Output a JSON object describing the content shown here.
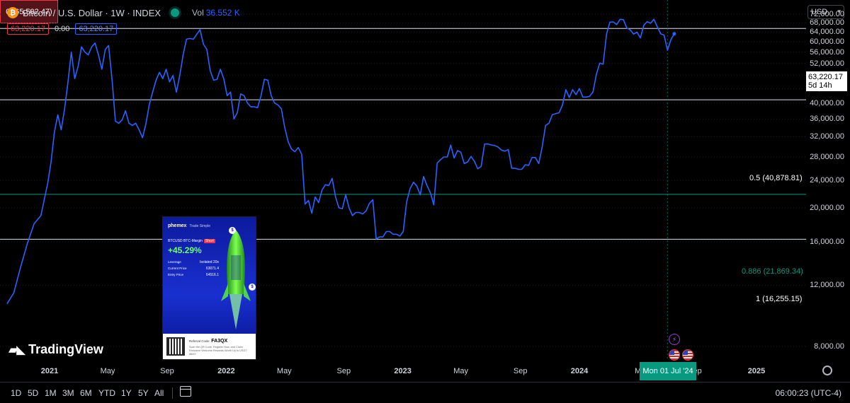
{
  "header": {
    "symbol_icon": "bitcoin-icon",
    "title": "Bitcoin / U.S. Dollar · 1W · INDEX",
    "vol_label": "Vol",
    "vol_value": "36.552 K",
    "price_left": "63,220.17",
    "price_change": "0.00",
    "price_right": "63,220.17"
  },
  "currency": {
    "label": "USD"
  },
  "current_price": {
    "value": "63,220.17",
    "countdown": "5d 14h"
  },
  "fib_labels": {
    "top": "0 (65,502.47)",
    "half": "0.5 (40,878.81)",
    "f886": "0.886 (21,869.34)",
    "one": "1 (16,255.15)"
  },
  "crosshair": {
    "date_label": "Mon 01 Jul '24"
  },
  "time_buttons": [
    "1D",
    "5D",
    "1M",
    "3M",
    "6M",
    "YTD",
    "1Y",
    "5Y",
    "All"
  ],
  "clock": "06:00:23 (UTC-4)",
  "logo": {
    "text": "TradingView"
  },
  "ad": {
    "brand": "phemex",
    "brand_sub": "Trade Simple",
    "pair": "BTCUSD BTC-Margin",
    "side": "Short",
    "pct": "+45.29%",
    "leverage_label": "Leverage",
    "leverage_value": "Isolated 20x",
    "current_label": "Current Price",
    "current_value": "63071.4",
    "entry_label": "Entry Price",
    "entry_value": "64516.1",
    "ref_label": "Referral Code:",
    "ref_code": "FA3QX",
    "fine": "Scan the QR Code, Register Now, and Claim Exclusive Welcome Rewards Worth Up to USDT 8800!"
  },
  "colors": {
    "background": "#000000",
    "line": "#2962ff",
    "fib_886": "#089981",
    "accent_red": "#f23645"
  },
  "chart_data": {
    "type": "line",
    "y_scale": "log",
    "ylim": [
      6800,
      79000
    ],
    "y_ticks": [
      {
        "value": 8000,
        "label": "8,000.00"
      },
      {
        "value": 12000,
        "label": "12,000.00"
      },
      {
        "value": 16000,
        "label": "16,000.00"
      },
      {
        "value": 20000,
        "label": "20,000.00"
      },
      {
        "value": 24000,
        "label": "24,000.00"
      },
      {
        "value": 28000,
        "label": "28,000.00"
      },
      {
        "value": 32000,
        "label": "32,000.00"
      },
      {
        "value": 36000,
        "label": "36,000.00"
      },
      {
        "value": 40000,
        "label": "40,000.00"
      },
      {
        "value": 44000,
        "label": "44,000.00"
      },
      {
        "value": 48000,
        "label": "48,000.00"
      },
      {
        "value": 52000,
        "label": "52,000.00"
      },
      {
        "value": 56000,
        "label": "56,000.00"
      },
      {
        "value": 60000,
        "label": "60,000.00"
      },
      {
        "value": 64000,
        "label": "64,000.00"
      },
      {
        "value": 68000,
        "label": "68,000.00"
      },
      {
        "value": 72000,
        "label": "72,000.00"
      }
    ],
    "x_ticks": [
      {
        "date": "2021-01-01",
        "label": "2021",
        "bold": true
      },
      {
        "date": "2021-05-01",
        "label": "May",
        "bold": false
      },
      {
        "date": "2021-09-01",
        "label": "Sep",
        "bold": false
      },
      {
        "date": "2022-01-01",
        "label": "2022",
        "bold": true
      },
      {
        "date": "2022-05-01",
        "label": "May",
        "bold": false
      },
      {
        "date": "2022-09-01",
        "label": "Sep",
        "bold": false
      },
      {
        "date": "2023-01-01",
        "label": "2023",
        "bold": true
      },
      {
        "date": "2023-05-01",
        "label": "May",
        "bold": false
      },
      {
        "date": "2023-09-01",
        "label": "Sep",
        "bold": false
      },
      {
        "date": "2024-01-01",
        "label": "2024",
        "bold": true
      },
      {
        "date": "2024-05-01",
        "label": "M",
        "bold": false
      },
      {
        "date": "2024-09-01",
        "label": "ep",
        "bold": false
      },
      {
        "date": "2025-01-01",
        "label": "2025",
        "bold": true
      }
    ],
    "fib_levels": [
      {
        "ratio": "0",
        "value": 65502.47
      },
      {
        "ratio": "0.5",
        "value": 40878.81
      },
      {
        "ratio": "0.886",
        "value": 21869.34
      },
      {
        "ratio": "1",
        "value": 16255.15
      }
    ],
    "crosshair_date": "2024-07-01",
    "series": [
      {
        "points": [
          [
            "2020-10-05",
            10600
          ],
          [
            "2020-10-19",
            11400
          ],
          [
            "2020-11-02",
            13500
          ],
          [
            "2020-11-16",
            15800
          ],
          [
            "2020-11-30",
            18000
          ],
          [
            "2020-12-14",
            19000
          ],
          [
            "2020-12-28",
            23500
          ],
          [
            "2021-01-04",
            27000
          ],
          [
            "2021-01-11",
            33000
          ],
          [
            "2021-01-18",
            37000
          ],
          [
            "2021-01-25",
            33500
          ],
          [
            "2021-02-01",
            38500
          ],
          [
            "2021-02-08",
            46000
          ],
          [
            "2021-02-15",
            56000
          ],
          [
            "2021-02-22",
            47000
          ],
          [
            "2021-03-01",
            51000
          ],
          [
            "2021-03-08",
            58000
          ],
          [
            "2021-03-15",
            56000
          ],
          [
            "2021-03-22",
            55000
          ],
          [
            "2021-03-29",
            58000
          ],
          [
            "2021-04-05",
            59500
          ],
          [
            "2021-04-12",
            55000
          ],
          [
            "2021-04-19",
            50000
          ],
          [
            "2021-04-26",
            57000
          ],
          [
            "2021-05-03",
            58500
          ],
          [
            "2021-05-10",
            47000
          ],
          [
            "2021-05-17",
            35500
          ],
          [
            "2021-05-24",
            35000
          ],
          [
            "2021-05-31",
            35800
          ],
          [
            "2021-06-07",
            38000
          ],
          [
            "2021-06-14",
            35000
          ],
          [
            "2021-06-21",
            34500
          ],
          [
            "2021-06-28",
            35000
          ],
          [
            "2021-07-05",
            33500
          ],
          [
            "2021-07-12",
            31800
          ],
          [
            "2021-07-19",
            34800
          ],
          [
            "2021-07-26",
            39500
          ],
          [
            "2021-08-02",
            43000
          ],
          [
            "2021-08-09",
            46500
          ],
          [
            "2021-08-16",
            49000
          ],
          [
            "2021-08-23",
            47000
          ],
          [
            "2021-08-30",
            50000
          ],
          [
            "2021-09-06",
            46000
          ],
          [
            "2021-09-13",
            48000
          ],
          [
            "2021-09-20",
            43000
          ],
          [
            "2021-09-27",
            48000
          ],
          [
            "2021-10-04",
            55000
          ],
          [
            "2021-10-11",
            61000
          ],
          [
            "2021-10-18",
            61300
          ],
          [
            "2021-10-25",
            61000
          ],
          [
            "2021-11-01",
            63000
          ],
          [
            "2021-11-08",
            65000
          ],
          [
            "2021-11-15",
            59000
          ],
          [
            "2021-11-22",
            57000
          ],
          [
            "2021-11-29",
            49500
          ],
          [
            "2021-12-06",
            46500
          ],
          [
            "2021-12-13",
            46800
          ],
          [
            "2021-12-20",
            50000
          ],
          [
            "2021-12-27",
            47000
          ],
          [
            "2022-01-03",
            42000
          ],
          [
            "2022-01-10",
            43000
          ],
          [
            "2022-01-17",
            36000
          ],
          [
            "2022-01-24",
            37500
          ],
          [
            "2022-01-31",
            42500
          ],
          [
            "2022-02-07",
            42000
          ],
          [
            "2022-02-14",
            40000
          ],
          [
            "2022-02-21",
            39000
          ],
          [
            "2022-02-28",
            39000
          ],
          [
            "2022-03-07",
            38800
          ],
          [
            "2022-03-14",
            42000
          ],
          [
            "2022-03-21",
            46800
          ],
          [
            "2022-03-28",
            46500
          ],
          [
            "2022-04-04",
            42000
          ],
          [
            "2022-04-11",
            40000
          ],
          [
            "2022-04-18",
            39500
          ],
          [
            "2022-04-25",
            38500
          ],
          [
            "2022-05-02",
            34000
          ],
          [
            "2022-05-09",
            31000
          ],
          [
            "2022-05-16",
            29500
          ],
          [
            "2022-05-23",
            29000
          ],
          [
            "2022-05-30",
            29800
          ],
          [
            "2022-06-06",
            28500
          ],
          [
            "2022-06-13",
            20500
          ],
          [
            "2022-06-20",
            21000
          ],
          [
            "2022-06-27",
            19300
          ],
          [
            "2022-07-04",
            21500
          ],
          [
            "2022-07-11",
            20700
          ],
          [
            "2022-07-18",
            22500
          ],
          [
            "2022-07-25",
            23300
          ],
          [
            "2022-08-01",
            23200
          ],
          [
            "2022-08-08",
            24300
          ],
          [
            "2022-08-15",
            21500
          ],
          [
            "2022-08-22",
            20000
          ],
          [
            "2022-08-29",
            19900
          ],
          [
            "2022-09-05",
            21800
          ],
          [
            "2022-09-12",
            20000
          ],
          [
            "2022-09-19",
            19000
          ],
          [
            "2022-09-26",
            19400
          ],
          [
            "2022-10-03",
            19400
          ],
          [
            "2022-10-10",
            19200
          ],
          [
            "2022-10-17",
            19600
          ],
          [
            "2022-10-24",
            20600
          ],
          [
            "2022-10-31",
            21100
          ],
          [
            "2022-11-07",
            16300
          ],
          [
            "2022-11-14",
            16500
          ],
          [
            "2022-11-21",
            16500
          ],
          [
            "2022-11-28",
            17100
          ],
          [
            "2022-12-05",
            17100
          ],
          [
            "2022-12-12",
            16800
          ],
          [
            "2022-12-19",
            16800
          ],
          [
            "2022-12-26",
            16600
          ],
          [
            "2023-01-02",
            17100
          ],
          [
            "2023-01-09",
            20800
          ],
          [
            "2023-01-16",
            22700
          ],
          [
            "2023-01-23",
            23700
          ],
          [
            "2023-01-30",
            23100
          ],
          [
            "2023-02-06",
            21800
          ],
          [
            "2023-02-13",
            24600
          ],
          [
            "2023-02-20",
            23200
          ],
          [
            "2023-02-27",
            22100
          ],
          [
            "2023-03-06",
            20400
          ],
          [
            "2023-03-13",
            26900
          ],
          [
            "2023-03-20",
            27500
          ],
          [
            "2023-03-27",
            28000
          ],
          [
            "2023-04-03",
            28000
          ],
          [
            "2023-04-10",
            30300
          ],
          [
            "2023-04-17",
            27800
          ],
          [
            "2023-04-24",
            29200
          ],
          [
            "2023-05-01",
            28900
          ],
          [
            "2023-05-08",
            26800
          ],
          [
            "2023-05-15",
            27100
          ],
          [
            "2023-05-22",
            28100
          ],
          [
            "2023-05-29",
            27200
          ],
          [
            "2023-06-05",
            25900
          ],
          [
            "2023-06-12",
            26300
          ],
          [
            "2023-06-19",
            30500
          ],
          [
            "2023-06-26",
            30500
          ],
          [
            "2023-07-03",
            30300
          ],
          [
            "2023-07-10",
            30200
          ],
          [
            "2023-07-17",
            29900
          ],
          [
            "2023-07-24",
            29300
          ],
          [
            "2023-07-31",
            29100
          ],
          [
            "2023-08-07",
            29400
          ],
          [
            "2023-08-14",
            26000
          ],
          [
            "2023-08-21",
            26000
          ],
          [
            "2023-08-28",
            25800
          ],
          [
            "2023-09-04",
            25800
          ],
          [
            "2023-09-11",
            26600
          ],
          [
            "2023-09-18",
            26500
          ],
          [
            "2023-09-25",
            27900
          ],
          [
            "2023-10-02",
            27900
          ],
          [
            "2023-10-09",
            26800
          ],
          [
            "2023-10-16",
            29900
          ],
          [
            "2023-10-23",
            34500
          ],
          [
            "2023-10-30",
            35000
          ],
          [
            "2023-11-06",
            37000
          ],
          [
            "2023-11-13",
            37300
          ],
          [
            "2023-11-20",
            37500
          ],
          [
            "2023-11-27",
            39500
          ],
          [
            "2023-12-04",
            43700
          ],
          [
            "2023-12-11",
            41500
          ],
          [
            "2023-12-18",
            43700
          ],
          [
            "2023-12-25",
            42300
          ],
          [
            "2024-01-01",
            44000
          ],
          [
            "2024-01-08",
            41600
          ],
          [
            "2024-01-15",
            41600
          ],
          [
            "2024-01-22",
            41800
          ],
          [
            "2024-01-29",
            43000
          ],
          [
            "2024-02-05",
            48300
          ],
          [
            "2024-02-12",
            52100
          ],
          [
            "2024-02-19",
            51700
          ],
          [
            "2024-02-26",
            63100
          ],
          [
            "2024-03-04",
            68300
          ],
          [
            "2024-03-11",
            68400
          ],
          [
            "2024-03-18",
            67200
          ],
          [
            "2024-03-25",
            69600
          ],
          [
            "2024-04-01",
            69400
          ],
          [
            "2024-04-08",
            65700
          ],
          [
            "2024-04-15",
            64900
          ],
          [
            "2024-04-22",
            63100
          ],
          [
            "2024-04-29",
            63900
          ],
          [
            "2024-05-06",
            61500
          ],
          [
            "2024-05-13",
            66900
          ],
          [
            "2024-05-20",
            68500
          ],
          [
            "2024-05-27",
            67800
          ],
          [
            "2024-06-03",
            69600
          ],
          [
            "2024-06-10",
            66200
          ],
          [
            "2024-06-17",
            63200
          ],
          [
            "2024-06-24",
            62700
          ],
          [
            "2024-07-01",
            56700
          ],
          [
            "2024-07-08",
            60800
          ],
          [
            "2024-07-15",
            63220
          ]
        ]
      }
    ]
  }
}
